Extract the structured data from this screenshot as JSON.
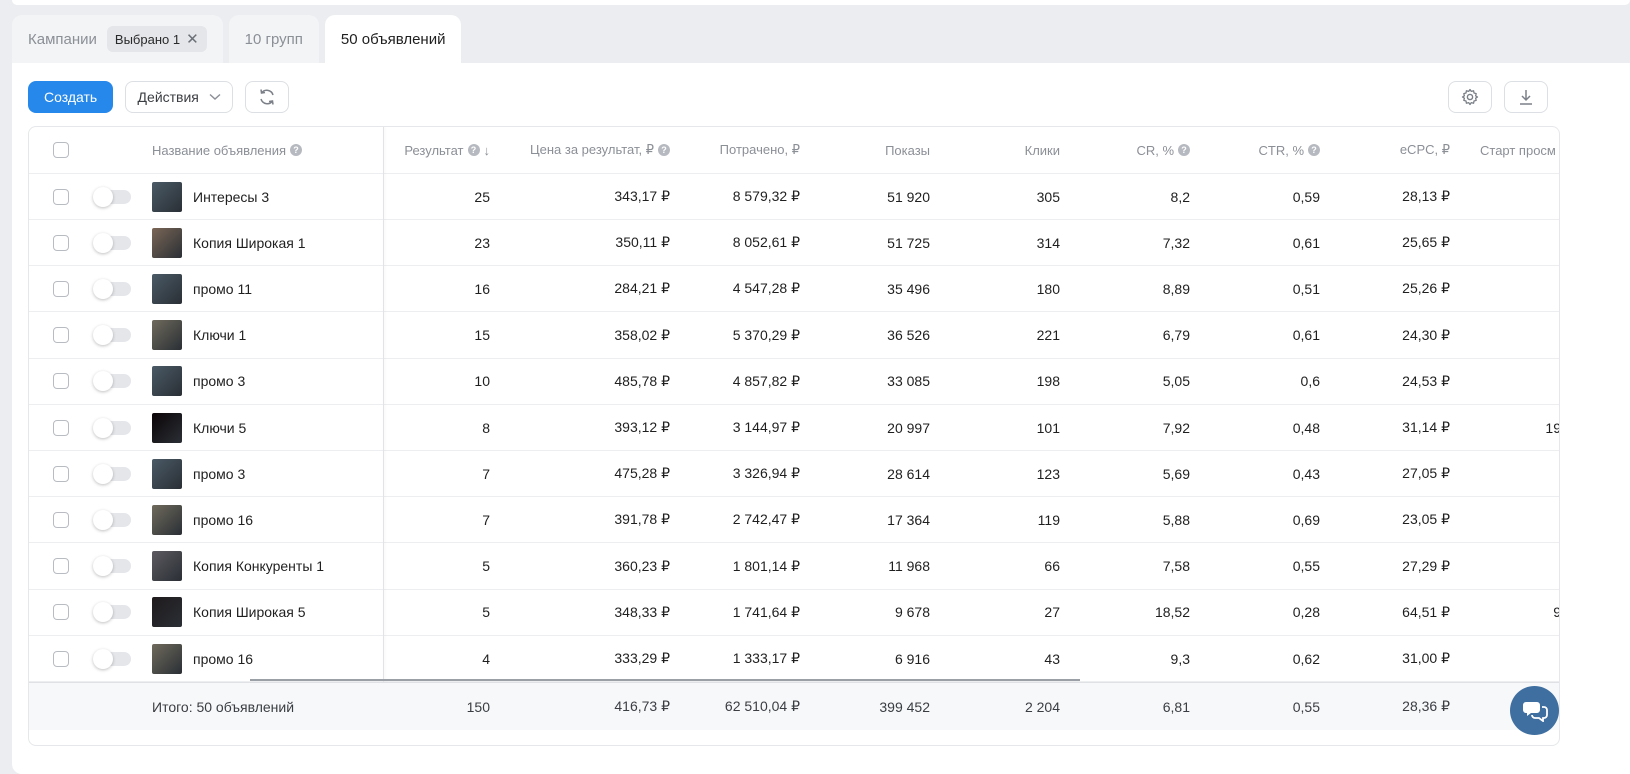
{
  "tabs": {
    "campaigns_label": "Кампании",
    "selected_chip": "Выбрано 1",
    "chip_close": "✕",
    "groups_label": "10 групп",
    "ads_label": "50 объявлений"
  },
  "toolbar": {
    "create_label": "Создать",
    "actions_label": "Действия"
  },
  "columns": {
    "name": "Название объявления",
    "result": "Результат",
    "price": "Цена за результат, ₽",
    "spent": "Потрачено, ₽",
    "impressions": "Показы",
    "clicks": "Клики",
    "cr": "CR, %",
    "ctr": "CTR, %",
    "ecpc": "eCPC, ₽",
    "start": "Старт просм",
    "sort_arrow": "↓",
    "help_icon": "?"
  },
  "rows": [
    {
      "name": "Интересы 3",
      "result": "25",
      "price": "343,17 ₽",
      "spent": "8 579,32 ₽",
      "impressions": "51 920",
      "clicks": "305",
      "cr": "8,2",
      "ctr": "0,59",
      "ecpc": "28,13 ₽",
      "start": "",
      "thumb": "#4a5a66"
    },
    {
      "name": "Копия Широкая 1",
      "result": "23",
      "price": "350,11 ₽",
      "spent": "8 052,61 ₽",
      "impressions": "51 725",
      "clicks": "314",
      "cr": "7,32",
      "ctr": "0,61",
      "ecpc": "25,65 ₽",
      "start": "",
      "thumb": "#7a6656"
    },
    {
      "name": "промо 11",
      "result": "16",
      "price": "284,21 ₽",
      "spent": "4 547,28 ₽",
      "impressions": "35 496",
      "clicks": "180",
      "cr": "8,89",
      "ctr": "0,51",
      "ecpc": "25,26 ₽",
      "start": "",
      "thumb": "#4a5a66"
    },
    {
      "name": "Ключи 1",
      "result": "15",
      "price": "358,02 ₽",
      "spent": "5 370,29 ₽",
      "impressions": "36 526",
      "clicks": "221",
      "cr": "6,79",
      "ctr": "0,61",
      "ecpc": "24,30 ₽",
      "start": "",
      "thumb": "#6f6a5c"
    },
    {
      "name": "промо 3",
      "result": "10",
      "price": "485,78 ₽",
      "spent": "4 857,82 ₽",
      "impressions": "33 085",
      "clicks": "198",
      "cr": "5,05",
      "ctr": "0,6",
      "ecpc": "24,53 ₽",
      "start": "",
      "thumb": "#4a5a66"
    },
    {
      "name": "Ключи 5",
      "result": "8",
      "price": "393,12 ₽",
      "spent": "3 144,97 ₽",
      "impressions": "20 997",
      "clicks": "101",
      "cr": "7,92",
      "ctr": "0,48",
      "ecpc": "31,14 ₽",
      "start": "19",
      "thumb": "#0b0406"
    },
    {
      "name": "промо 3",
      "result": "7",
      "price": "475,28 ₽",
      "spent": "3 326,94 ₽",
      "impressions": "28 614",
      "clicks": "123",
      "cr": "5,69",
      "ctr": "0,43",
      "ecpc": "27,05 ₽",
      "start": "",
      "thumb": "#4a5a66"
    },
    {
      "name": "промо 16",
      "result": "7",
      "price": "391,78 ₽",
      "spent": "2 742,47 ₽",
      "impressions": "17 364",
      "clicks": "119",
      "cr": "5,88",
      "ctr": "0,69",
      "ecpc": "23,05 ₽",
      "start": "",
      "thumb": "#6f6a5c"
    },
    {
      "name": "Копия Конкуренты 1",
      "result": "5",
      "price": "360,23 ₽",
      "spent": "1 801,14 ₽",
      "impressions": "11 968",
      "clicks": "66",
      "cr": "7,58",
      "ctr": "0,55",
      "ecpc": "27,29 ₽",
      "start": "",
      "thumb": "#5c5a60"
    },
    {
      "name": "Копия Широкая 5",
      "result": "5",
      "price": "348,33 ₽",
      "spent": "1 741,64 ₽",
      "impressions": "9 678",
      "clicks": "27",
      "cr": "18,52",
      "ctr": "0,28",
      "ecpc": "64,51 ₽",
      "start": "9",
      "thumb": "#1f1a1c"
    },
    {
      "name": "промо 16",
      "result": "4",
      "price": "333,29 ₽",
      "spent": "1 333,17 ₽",
      "impressions": "6 916",
      "clicks": "43",
      "cr": "9,3",
      "ctr": "0,62",
      "ecpc": "31,00 ₽",
      "start": "",
      "thumb": "#6f6a5c"
    }
  ],
  "total": {
    "label": "Итого: 50 объявлений",
    "result": "150",
    "price": "416,73 ₽",
    "spent": "62 510,04 ₽",
    "impressions": "399 452",
    "clicks": "2 204",
    "cr": "6,81",
    "ctr": "0,55",
    "ecpc": "28,36 ₽"
  },
  "colors": {
    "primary": "#2688eb",
    "chat": "#3f6fa0"
  }
}
